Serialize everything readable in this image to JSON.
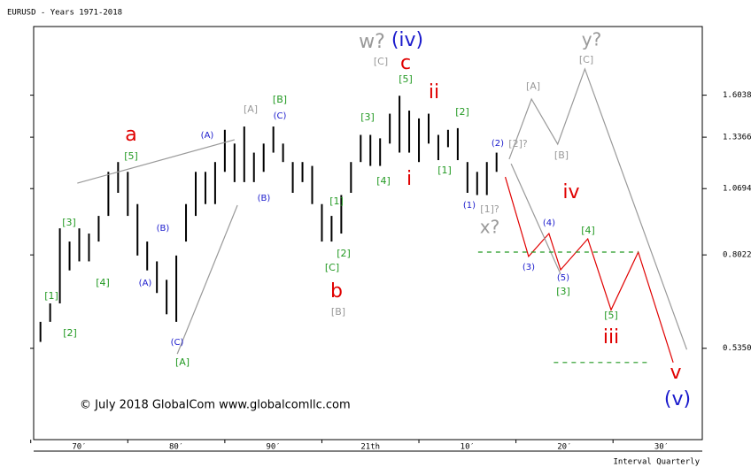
{
  "chart_data": {
    "type": "ohlc",
    "title": "EURUSD - Years 1971-2018",
    "footer": "Interval Quarterly",
    "credit": "© July 2018 GlobalCom www.globalcomllc.com",
    "log_scale": true,
    "bar_color": "#000000",
    "x": [
      1971,
      1972,
      1973,
      1974,
      1975,
      1976,
      1977,
      1978,
      1979,
      1980,
      1981,
      1982,
      1983,
      1984,
      1985,
      1986,
      1987,
      1988,
      1989,
      1990,
      1991,
      1992,
      1993,
      1994,
      1995,
      1996,
      1997,
      1998,
      1999,
      2000,
      2001,
      2002,
      2003,
      2004,
      2005,
      2006,
      2007,
      2008,
      2009,
      2010,
      2011,
      2012,
      2013,
      2014,
      2015,
      2016,
      2017,
      2018
    ],
    "high": [
      0.6,
      0.65,
      0.9,
      0.85,
      0.9,
      0.88,
      0.95,
      1.15,
      1.2,
      1.15,
      1.0,
      0.85,
      0.78,
      0.72,
      0.8,
      1.0,
      1.15,
      1.15,
      1.2,
      1.38,
      1.3,
      1.4,
      1.25,
      1.3,
      1.4,
      1.3,
      1.2,
      1.2,
      1.18,
      1.0,
      0.95,
      1.04,
      1.2,
      1.35,
      1.35,
      1.33,
      1.48,
      1.6,
      1.5,
      1.45,
      1.48,
      1.35,
      1.38,
      1.39,
      1.2,
      1.15,
      1.2,
      1.25
    ],
    "low": [
      0.55,
      0.6,
      0.65,
      0.75,
      0.78,
      0.78,
      0.85,
      0.95,
      1.05,
      0.95,
      0.8,
      0.75,
      0.68,
      0.62,
      0.6,
      0.85,
      0.95,
      1.0,
      1.0,
      1.15,
      1.1,
      1.1,
      1.1,
      1.15,
      1.25,
      1.2,
      1.05,
      1.1,
      1.0,
      0.85,
      0.85,
      0.88,
      1.05,
      1.2,
      1.18,
      1.18,
      1.3,
      1.25,
      1.25,
      1.2,
      1.3,
      1.21,
      1.28,
      1.21,
      1.05,
      1.04,
      1.04,
      1.15
    ],
    "xlim": [
      1970.3,
      2039.2
    ],
    "ylim": [
      0.36,
      2.16
    ],
    "xticks": [
      {
        "value": 1970,
        "label": "70′"
      },
      {
        "value": 1980,
        "label": "80′"
      },
      {
        "value": 1990,
        "label": "90′"
      },
      {
        "value": 2000,
        "label": "21th"
      },
      {
        "value": 2010,
        "label": "10′"
      },
      {
        "value": 2020,
        "label": "20′"
      },
      {
        "value": 2030,
        "label": "30′"
      }
    ],
    "yticks": [
      {
        "value": 0.535,
        "label": "0.5350"
      },
      0.8022,
      1.0694,
      1.3366,
      1.6038
    ],
    "projections": [
      {
        "color": "#e00000",
        "style": "solid",
        "x": [
          2018.9,
          2021.3,
          2023.4,
          2024.6,
          2027.4,
          2029.8,
          2032.6,
          2036.2
        ],
        "values": [
          1.125,
          0.797,
          0.88,
          0.752,
          0.86,
          0.632,
          0.812,
          0.503
        ]
      },
      {
        "color": "#999999",
        "style": "solid",
        "x": [
          2019.3,
          2021.6,
          2024.3,
          2027.1,
          2037.6
        ],
        "values": [
          1.215,
          1.577,
          1.297,
          1.797,
          0.532
        ]
      },
      {
        "color": "#999999",
        "style": "solid",
        "x": [
          2019.5,
          2024.6
        ],
        "values": [
          1.191,
          0.738
        ]
      },
      {
        "color": "#999999",
        "style": "solid",
        "x": [
          1974.8,
          1991.0
        ],
        "values": [
          1.095,
          1.322
        ]
      },
      {
        "color": "#999999",
        "style": "solid",
        "x": [
          1985.1,
          1991.3
        ],
        "values": [
          0.522,
          0.995
        ]
      },
      {
        "color": "#229922",
        "style": "dashed",
        "x": [
          2016.1,
          2032.6
        ],
        "values": [
          0.812,
          0.812
        ]
      },
      {
        "color": "#229922",
        "style": "dashed",
        "x": [
          2023.9,
          2033.9
        ],
        "values": [
          0.503,
          0.503
        ]
      }
    ],
    "annotations": [
      {
        "text": "w?",
        "color": "#999999"
      },
      {
        "text": "(iv)",
        "color": "#1a1acc"
      },
      {
        "text": "[C]",
        "color": "#999999"
      },
      {
        "text": "c",
        "color": "#e00000"
      },
      {
        "text": "[5]",
        "color": "#229922"
      },
      {
        "text": "ii",
        "color": "#e00000"
      },
      {
        "text": "i",
        "color": "#e00000"
      },
      {
        "text": "[3]",
        "color": "#229922"
      },
      {
        "text": "[4]",
        "color": "#229922"
      },
      {
        "text": "[1]",
        "color": "#229922"
      },
      {
        "text": "[2]",
        "color": "#229922"
      },
      {
        "text": "[C]",
        "color": "#229922"
      },
      {
        "text": "b",
        "color": "#e00000"
      },
      {
        "text": "[B]",
        "color": "#999999"
      },
      {
        "text": "[2]",
        "color": "#229922"
      },
      {
        "text": "[1]",
        "color": "#229922"
      },
      {
        "text": "(2)",
        "color": "#1a1acc"
      },
      {
        "text": "[2]?",
        "color": "#999999"
      },
      {
        "text": "(1)",
        "color": "#1a1acc"
      },
      {
        "text": "[1]?",
        "color": "#999999"
      },
      {
        "text": "x?",
        "color": "#999999"
      },
      {
        "text": "[A]",
        "color": "#999999"
      },
      {
        "text": "[B]",
        "color": "#999999"
      },
      {
        "text": "y?",
        "color": "#999999"
      },
      {
        "text": "[C]",
        "color": "#999999"
      },
      {
        "text": "iv",
        "color": "#e00000"
      },
      {
        "text": "(4)",
        "color": "#1a1acc"
      },
      {
        "text": "[4]",
        "color": "#229922"
      },
      {
        "text": "(3)",
        "color": "#1a1acc"
      },
      {
        "text": "(5)",
        "color": "#1a1acc"
      },
      {
        "text": "[3]",
        "color": "#229922"
      },
      {
        "text": "[5]",
        "color": "#229922"
      },
      {
        "text": "iii",
        "color": "#e00000"
      },
      {
        "text": "v",
        "color": "#e00000"
      },
      {
        "text": "(v)",
        "color": "#1a1acc"
      },
      {
        "text": "a",
        "color": "#e00000"
      },
      {
        "text": "[5]",
        "color": "#229922"
      },
      {
        "text": "(A)",
        "color": "#1a1acc"
      },
      {
        "text": "[3]",
        "color": "#229922"
      },
      {
        "text": "[4]",
        "color": "#229922"
      },
      {
        "text": "(B)",
        "color": "#1a1acc"
      },
      {
        "text": "(A)",
        "color": "#1a1acc"
      },
      {
        "text": "[1]",
        "color": "#229922"
      },
      {
        "text": "[2]",
        "color": "#229922"
      },
      {
        "text": "(C)",
        "color": "#1a1acc"
      },
      {
        "text": "[A]",
        "color": "#229922"
      },
      {
        "text": "[A]",
        "color": "#999999"
      },
      {
        "text": "[B]",
        "color": "#229922"
      },
      {
        "text": "(C)",
        "color": "#1a1acc"
      },
      {
        "text": "(B)",
        "color": "#1a1acc"
      }
    ]
  }
}
